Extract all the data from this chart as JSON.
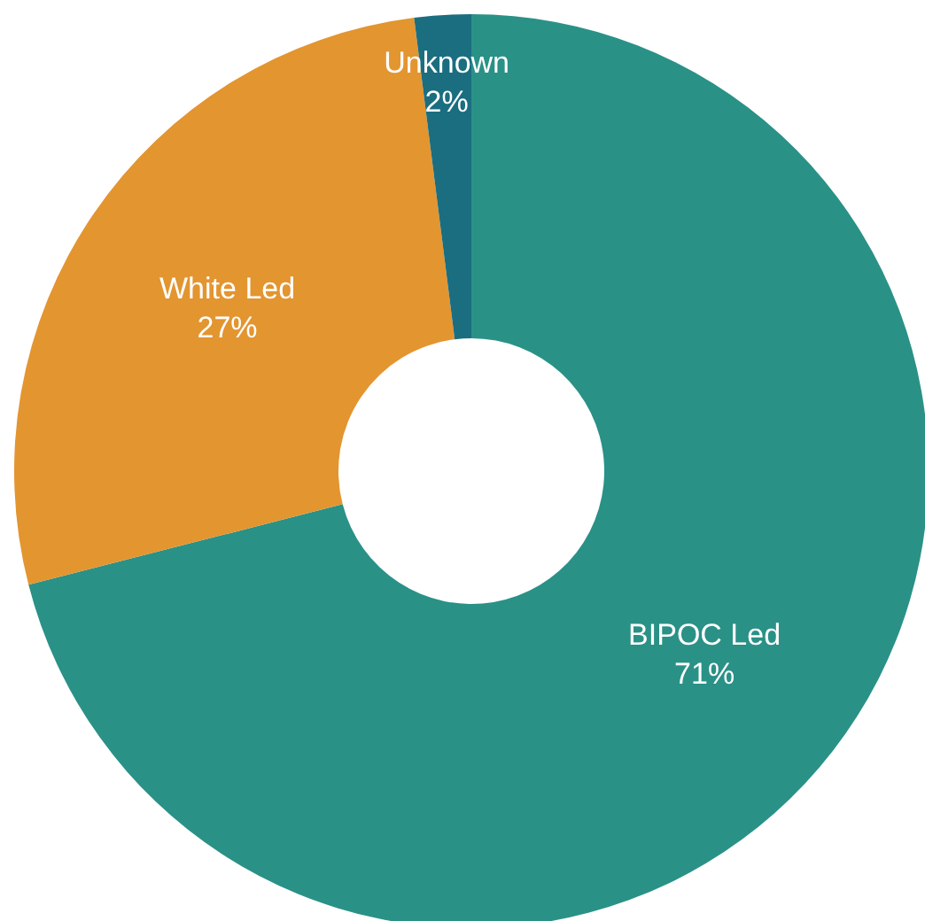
{
  "chart_data": {
    "type": "donut",
    "categories": [
      "BIPOC Led",
      "White Led",
      "Unknown"
    ],
    "values": [
      71,
      27,
      2
    ],
    "colors": [
      "#2a9187",
      "#e39530",
      "#1a6e80"
    ],
    "value_labels": [
      "71%",
      "27%",
      "2%"
    ]
  }
}
